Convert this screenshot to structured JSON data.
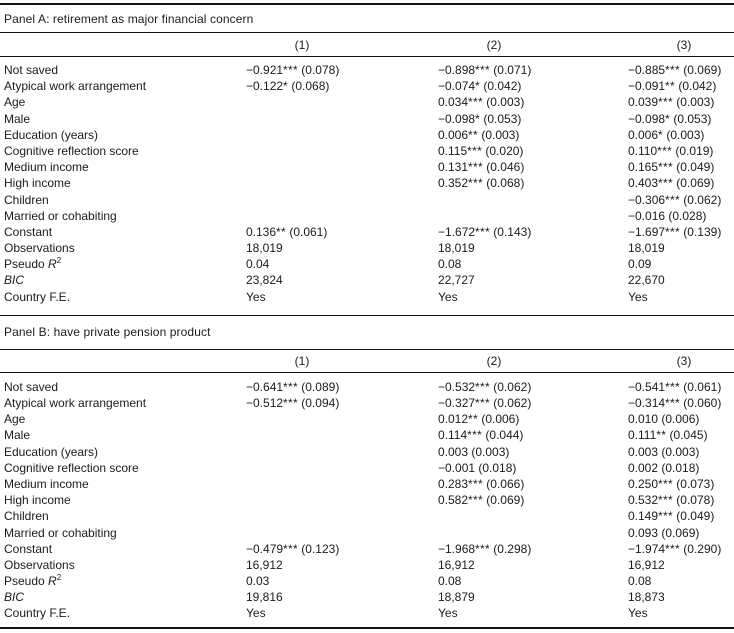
{
  "colors": {
    "background": "#ffffff",
    "text": "#1b1b1b",
    "rule": "#141414"
  },
  "panels": [
    {
      "id": "A",
      "title": "Panel A: retirement as major financial concern",
      "columns": [
        "(1)",
        "(2)",
        "(3)"
      ],
      "rows": [
        {
          "label": {
            "text": "Not saved"
          },
          "cells": [
            {
              "coef": "−0.921",
              "stars": "***",
              "se": "(0.078)"
            },
            {
              "coef": "−0.898",
              "stars": "***",
              "se": "(0.071)"
            },
            {
              "coef": "−0.885",
              "stars": "***",
              "se": "(0.069)"
            }
          ]
        },
        {
          "label": {
            "text": "Atypical work arrangement"
          },
          "cells": [
            {
              "coef": "−0.122",
              "stars": "*",
              "se": "(0.068)"
            },
            {
              "coef": "−0.074",
              "stars": "*",
              "se": "(0.042)"
            },
            {
              "coef": "−0.091",
              "stars": "**",
              "se": "(0.042)"
            }
          ]
        },
        {
          "label": {
            "text": "Age"
          },
          "cells": [
            null,
            {
              "coef": "0.034",
              "stars": "***",
              "se": "(0.003)"
            },
            {
              "coef": "0.039",
              "stars": "***",
              "se": "(0.003)"
            }
          ]
        },
        {
          "label": {
            "text": "Male"
          },
          "cells": [
            null,
            {
              "coef": "−0.098",
              "stars": "*",
              "se": "(0.053)"
            },
            {
              "coef": "−0.098",
              "stars": "*",
              "se": "(0.053)"
            }
          ]
        },
        {
          "label": {
            "text": "Education (years)"
          },
          "cells": [
            null,
            {
              "coef": "0.006",
              "stars": "**",
              "se": "(0.003)"
            },
            {
              "coef": "0.006",
              "stars": "*",
              "se": "(0.003)"
            }
          ]
        },
        {
          "label": {
            "text": "Cognitive reflection score"
          },
          "cells": [
            null,
            {
              "coef": "0.115",
              "stars": "***",
              "se": "(0.020)"
            },
            {
              "coef": "0.110",
              "stars": "***",
              "se": "(0.019)"
            }
          ]
        },
        {
          "label": {
            "text": "Medium income"
          },
          "cells": [
            null,
            {
              "coef": "0.131",
              "stars": "***",
              "se": "(0.046)"
            },
            {
              "coef": "0.165",
              "stars": "***",
              "se": "(0.049)"
            }
          ]
        },
        {
          "label": {
            "text": "High income"
          },
          "cells": [
            null,
            {
              "coef": "0.352",
              "stars": "***",
              "se": "(0.068)"
            },
            {
              "coef": "0.403",
              "stars": "***",
              "se": "(0.069)"
            }
          ]
        },
        {
          "label": {
            "text": "Children"
          },
          "cells": [
            null,
            null,
            {
              "coef": "−0.306",
              "stars": "***",
              "se": "(0.062)"
            }
          ]
        },
        {
          "label": {
            "text": "Married or cohabiting"
          },
          "cells": [
            null,
            null,
            {
              "coef": "−0.016",
              "stars": "",
              "se": "(0.028)"
            }
          ]
        },
        {
          "label": {
            "text": "Constant"
          },
          "cells": [
            {
              "coef": "0.136",
              "stars": "**",
              "se": "(0.061)"
            },
            {
              "coef": "−1.672",
              "stars": "***",
              "se": "(0.143)"
            },
            {
              "coef": "−1.697",
              "stars": "***",
              "se": "(0.139)"
            }
          ]
        },
        {
          "label": {
            "text": "Observations"
          },
          "cells": [
            "18,019",
            "18,019",
            "18,019"
          ]
        },
        {
          "label": {
            "text": "Pseudo ",
            "var": "R",
            "sup": "2"
          },
          "cells": [
            "0.04",
            "0.08",
            "0.09"
          ]
        },
        {
          "label": {
            "var": "BIC"
          },
          "cells": [
            "23,824",
            "22,727",
            "22,670"
          ]
        },
        {
          "label": {
            "text": "Country F.E."
          },
          "cells": [
            "Yes",
            "Yes",
            "Yes"
          ]
        }
      ]
    },
    {
      "id": "B",
      "title": "Panel B: have private pension product",
      "columns": [
        "(1)",
        "(2)",
        "(3)"
      ],
      "rows": [
        {
          "label": {
            "text": "Not saved"
          },
          "cells": [
            {
              "coef": "−0.641",
              "stars": "***",
              "se": "(0.089)"
            },
            {
              "coef": "−0.532",
              "stars": "***",
              "se": "(0.062)"
            },
            {
              "coef": "−0.541",
              "stars": "***",
              "se": "(0.061)"
            }
          ]
        },
        {
          "label": {
            "text": "Atypical work arrangement"
          },
          "cells": [
            {
              "coef": "−0.512",
              "stars": "***",
              "se": "(0.094)"
            },
            {
              "coef": "−0.327",
              "stars": "***",
              "se": "(0.062)"
            },
            {
              "coef": "−0.314",
              "stars": "***",
              "se": "(0.060)"
            }
          ]
        },
        {
          "label": {
            "text": "Age"
          },
          "cells": [
            null,
            {
              "coef": "0.012",
              "stars": "**",
              "se": "(0.006)"
            },
            {
              "coef": "0.010",
              "stars": "",
              "se": "(0.006)"
            }
          ]
        },
        {
          "label": {
            "text": "Male"
          },
          "cells": [
            null,
            {
              "coef": "0.114",
              "stars": "***",
              "se": "(0.044)"
            },
            {
              "coef": "0.111",
              "stars": "**",
              "se": "(0.045)"
            }
          ]
        },
        {
          "label": {
            "text": "Education (years)"
          },
          "cells": [
            null,
            {
              "coef": "0.003",
              "stars": "",
              "se": "(0.003)"
            },
            {
              "coef": "0.003",
              "stars": "",
              "se": "(0.003)"
            }
          ]
        },
        {
          "label": {
            "text": "Cognitive reflection score"
          },
          "cells": [
            null,
            {
              "coef": "−0.001",
              "stars": "",
              "se": "(0.018)"
            },
            {
              "coef": "0.002",
              "stars": "",
              "se": "(0.018)"
            }
          ]
        },
        {
          "label": {
            "text": "Medium income"
          },
          "cells": [
            null,
            {
              "coef": "0.283",
              "stars": "***",
              "se": "(0.066)"
            },
            {
              "coef": "0.250",
              "stars": "***",
              "se": "(0.073)"
            }
          ]
        },
        {
          "label": {
            "text": "High income"
          },
          "cells": [
            null,
            {
              "coef": "0.582",
              "stars": "***",
              "se": "(0.069)"
            },
            {
              "coef": "0.532",
              "stars": "***",
              "se": "(0.078)"
            }
          ]
        },
        {
          "label": {
            "text": "Children"
          },
          "cells": [
            null,
            null,
            {
              "coef": "0.149",
              "stars": "***",
              "se": "(0.049)"
            }
          ]
        },
        {
          "label": {
            "text": "Married or cohabiting"
          },
          "cells": [
            null,
            null,
            {
              "coef": "0.093",
              "stars": "",
              "se": "(0.069)"
            }
          ]
        },
        {
          "label": {
            "text": "Constant"
          },
          "cells": [
            {
              "coef": "−0.479",
              "stars": "***",
              "se": "(0.123)"
            },
            {
              "coef": "−1.968",
              "stars": "***",
              "se": "(0.298)"
            },
            {
              "coef": "−1.974",
              "stars": "***",
              "se": "(0.290)"
            }
          ]
        },
        {
          "label": {
            "text": "Observations"
          },
          "cells": [
            "16,912",
            "16,912",
            "16,912"
          ]
        },
        {
          "label": {
            "text": "Pseudo ",
            "var": "R",
            "sup": "2"
          },
          "cells": [
            "0.03",
            "0.08",
            "0.08"
          ]
        },
        {
          "label": {
            "var": "BIC"
          },
          "cells": [
            "19,816",
            "18,879",
            "18,873"
          ]
        },
        {
          "label": {
            "text": "Country F.E."
          },
          "cells": [
            "Yes",
            "Yes",
            "Yes"
          ]
        }
      ]
    }
  ]
}
